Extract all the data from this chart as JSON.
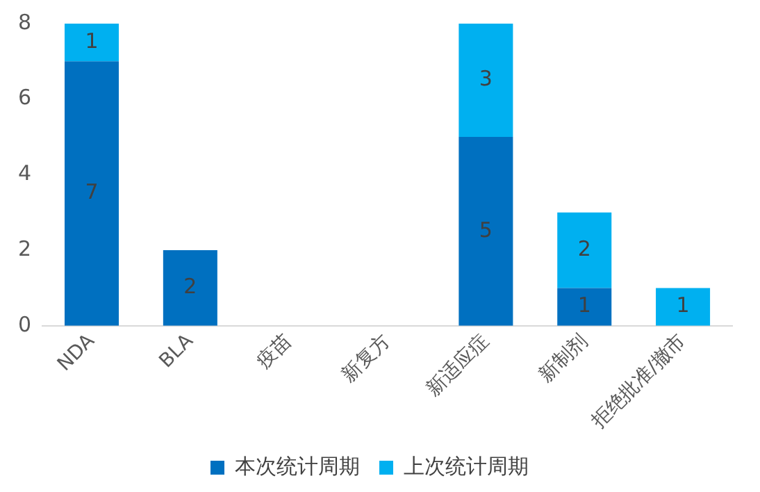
{
  "chart_data": {
    "type": "bar",
    "stacked": true,
    "categories": [
      "NDA",
      "BLA",
      "疫苗",
      "新复方",
      "新适应症",
      "新制剂",
      "拒绝批准/撤市"
    ],
    "series": [
      {
        "name": "本次统计周期",
        "color": "#0070c0",
        "values": [
          7,
          2,
          0,
          0,
          5,
          1,
          0
        ],
        "value_labels": [
          "7",
          "2",
          null,
          null,
          "5",
          "1",
          null
        ]
      },
      {
        "name": "上次统计周期",
        "color": "#00b0f0",
        "values": [
          1,
          0,
          0,
          0,
          3,
          2,
          1
        ],
        "value_labels": [
          "1",
          null,
          null,
          null,
          "3",
          "2",
          "1"
        ]
      }
    ],
    "ylim": [
      0,
      8
    ],
    "yticks": [
      0,
      2,
      4,
      6,
      8
    ],
    "grid": false,
    "legend": "bottom"
  }
}
